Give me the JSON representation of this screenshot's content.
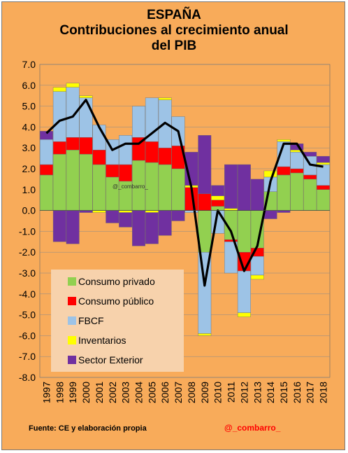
{
  "title": {
    "line1": "ESPAÑA",
    "line2": "Contribuciones al crecimiento anual",
    "line3": "del PIB"
  },
  "footer": {
    "source": "Fuente: CE y elaboración propia",
    "handle": "@_combarro_"
  },
  "watermark": "@_combarro_",
  "colors": {
    "background": "#f8ab5a",
    "consumo_privado": "#92d050",
    "consumo_publico": "#ff0000",
    "fbcf": "#9dc3e6",
    "inventarios": "#ffff00",
    "sector_exterior": "#7030a0",
    "pib_line": "#000000"
  },
  "chart_data": {
    "type": "bar",
    "stacked": true,
    "categories": [
      "1997",
      "1998",
      "1999",
      "2000",
      "2001",
      "2002",
      "2003",
      "2004",
      "2005",
      "2006",
      "2007",
      "2008",
      "2009",
      "2010",
      "2011",
      "2012",
      "2013",
      "2014",
      "2015",
      "2016",
      "2017",
      "2018"
    ],
    "ylim": [
      -8.0,
      7.0
    ],
    "yticks": [
      "7.0",
      "6.0",
      "5.0",
      "4.0",
      "3.0",
      "2.0",
      "1.0",
      "0.0",
      "-1.0",
      "-2.0",
      "-3.0",
      "-4.0",
      "-5.0",
      "-6.0",
      "-7.0",
      "-8.0"
    ],
    "ytick_values": [
      7,
      6,
      5,
      4,
      3,
      2,
      1,
      0,
      -1,
      -2,
      -3,
      -4,
      -5,
      -6,
      -7,
      -8
    ],
    "grid": true,
    "legend_position": "bottom-left",
    "series": [
      {
        "name": "Consumo privado",
        "key": "consumo_privado",
        "values": [
          1.7,
          2.7,
          2.9,
          2.7,
          2.2,
          1.6,
          1.4,
          2.4,
          2.3,
          2.2,
          2.0,
          0.0,
          -2.0,
          0.2,
          -1.4,
          -2.0,
          -1.8,
          0.9,
          1.7,
          1.8,
          1.5,
          1.0
        ]
      },
      {
        "name": "Consumo público",
        "key": "consumo_publico",
        "values": [
          0.5,
          0.6,
          0.6,
          0.8,
          0.7,
          0.6,
          0.8,
          1.1,
          1.0,
          0.8,
          1.1,
          1.1,
          0.8,
          0.3,
          -0.1,
          -0.9,
          -0.4,
          0.0,
          0.4,
          0.2,
          0.2,
          0.2
        ]
      },
      {
        "name": "FBCF",
        "key": "fbcf",
        "values": [
          1.2,
          2.4,
          2.4,
          1.9,
          1.2,
          1.2,
          1.4,
          1.5,
          2.1,
          2.3,
          1.4,
          -0.1,
          -3.9,
          -1.1,
          -1.5,
          -2.0,
          -0.9,
          0.7,
          1.2,
          0.8,
          0.9,
          1.0
        ]
      },
      {
        "name": "Inventarios",
        "key": "inventarios",
        "values": [
          0.0,
          0.2,
          0.2,
          0.1,
          -0.1,
          0.0,
          -0.1,
          0.0,
          -0.1,
          0.1,
          0.0,
          0.1,
          -0.1,
          0.2,
          0.1,
          -0.2,
          -0.2,
          0.3,
          0.1,
          0.1,
          0.0,
          0.1
        ]
      },
      {
        "name": "Sector Exterior",
        "key": "sector_exterior",
        "values": [
          0.4,
          -1.5,
          -1.6,
          -0.1,
          0.0,
          -0.6,
          -0.7,
          -1.7,
          -1.5,
          -1.2,
          -0.5,
          1.6,
          2.8,
          0.5,
          2.1,
          2.2,
          1.5,
          -0.4,
          -0.1,
          0.3,
          0.2,
          0.3
        ]
      },
      {
        "name": "PIB",
        "key": "pib_line",
        "type": "line",
        "values": [
          3.7,
          4.3,
          4.5,
          5.3,
          4.0,
          2.9,
          3.2,
          3.2,
          3.7,
          4.2,
          3.8,
          1.1,
          -3.6,
          0.0,
          -1.0,
          -2.9,
          -1.7,
          1.4,
          3.2,
          3.2,
          2.2,
          2.1
        ]
      }
    ]
  }
}
